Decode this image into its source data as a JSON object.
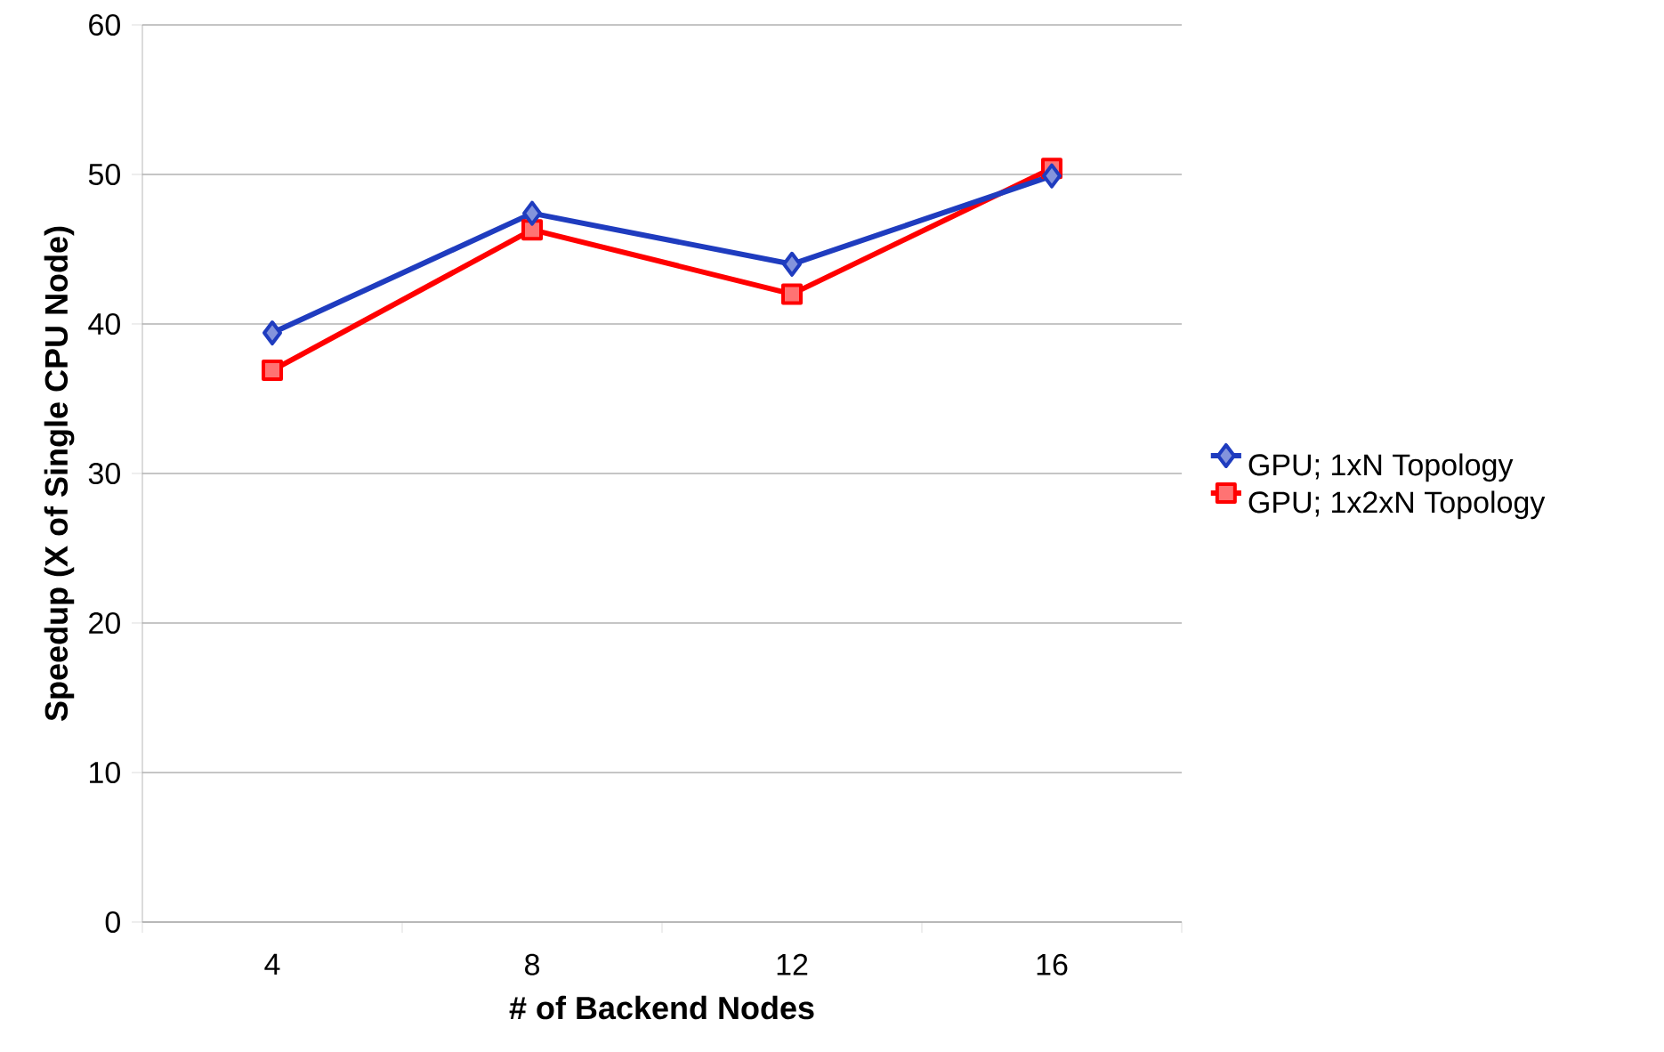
{
  "chart_data": {
    "type": "line",
    "xlabel": "# of Backend Nodes",
    "ylabel": "Speedup (X of Single CPU Node)",
    "categories": [
      "4",
      "8",
      "12",
      "16"
    ],
    "series": [
      {
        "name": "GPU; 1xN Topology",
        "color": "#1f3cbf",
        "marker": "diamond",
        "values": [
          39.4,
          47.4,
          44.0,
          49.9
        ]
      },
      {
        "name": "GPU; 1x2xN Topology",
        "color": "#ff0000",
        "marker": "square",
        "values": [
          36.9,
          46.3,
          42.0,
          50.4
        ]
      }
    ],
    "ylim": [
      0,
      60
    ],
    "yticks": [
      0,
      10,
      20,
      30,
      40,
      50,
      60
    ],
    "grid": "y",
    "legend": "right",
    "line_style": "solid"
  }
}
